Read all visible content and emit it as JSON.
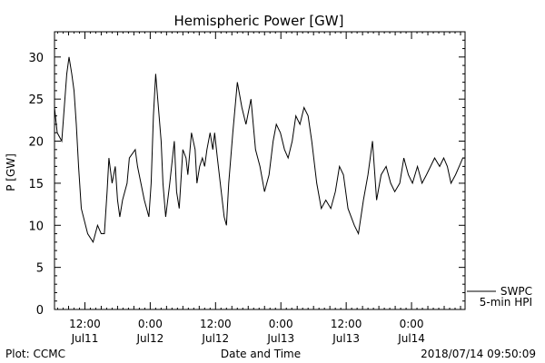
{
  "chart_data": {
    "type": "line",
    "title": "Hemispheric Power [GW]",
    "ylabel": "P [GW]",
    "xlabel": "Date and Time",
    "ylim": [
      0,
      33
    ],
    "xlim": [
      "2018-07-11T06:25",
      "2018-07-14T09:50"
    ],
    "grid": false,
    "y_ticks": [
      "0",
      "5",
      "10",
      "15",
      "20",
      "25",
      "30"
    ],
    "x_ticks": [
      {
        "time": "2018-07-11T12:00",
        "line1": "12:00",
        "line2": "Jul11"
      },
      {
        "time": "2018-07-12T00:00",
        "line1": "0:00",
        "line2": "Jul12"
      },
      {
        "time": "2018-07-12T12:00",
        "line1": "12:00",
        "line2": "Jul12"
      },
      {
        "time": "2018-07-13T00:00",
        "line1": "0:00",
        "line2": "Jul13"
      },
      {
        "time": "2018-07-13T12:00",
        "line1": "12:00",
        "line2": "Jul13"
      },
      {
        "time": "2018-07-14T00:00",
        "line1": "0:00",
        "line2": "Jul14"
      }
    ],
    "legend": {
      "placement": "bottom-right",
      "line1": "SWPC",
      "line2": "5-min HPI"
    },
    "series": [
      {
        "name": "SWPC 5-min HPI",
        "color": "#000000",
        "x": [
          "2018-07-11T06:25",
          "2018-07-11T06:55",
          "2018-07-11T07:45",
          "2018-07-11T08:40",
          "2018-07-11T09:05",
          "2018-07-11T09:35",
          "2018-07-11T10:00",
          "2018-07-11T10:25",
          "2018-07-11T10:50",
          "2018-07-11T11:20",
          "2018-07-11T12:30",
          "2018-07-11T13:30",
          "2018-07-11T14:20",
          "2018-07-11T15:00",
          "2018-07-11T15:35",
          "2018-07-11T16:05",
          "2018-07-11T16:25",
          "2018-07-11T17:00",
          "2018-07-11T17:35",
          "2018-07-11T18:00",
          "2018-07-11T18:25",
          "2018-07-11T18:55",
          "2018-07-11T19:45",
          "2018-07-11T20:10",
          "2018-07-11T21:15",
          "2018-07-11T21:40",
          "2018-07-11T22:55",
          "2018-07-11T23:45",
          "2018-07-12T00:10",
          "2018-07-12T00:35",
          "2018-07-12T01:00",
          "2018-07-12T01:30",
          "2018-07-12T02:00",
          "2018-07-12T02:20",
          "2018-07-12T02:50",
          "2018-07-12T03:35",
          "2018-07-12T04:25",
          "2018-07-12T04:50",
          "2018-07-12T05:20",
          "2018-07-12T06:00",
          "2018-07-12T06:35",
          "2018-07-12T06:55",
          "2018-07-12T07:35",
          "2018-07-12T08:15",
          "2018-07-12T08:35",
          "2018-07-12T09:05",
          "2018-07-12T09:35",
          "2018-07-12T10:00",
          "2018-07-12T10:25",
          "2018-07-12T11:00",
          "2018-07-12T11:30",
          "2018-07-12T11:50",
          "2018-07-12T12:20",
          "2018-07-12T13:35",
          "2018-07-12T14:00",
          "2018-07-12T14:25",
          "2018-07-12T15:10",
          "2018-07-12T16:00",
          "2018-07-12T16:50",
          "2018-07-12T17:35",
          "2018-07-12T18:30",
          "2018-07-12T19:20",
          "2018-07-12T20:10",
          "2018-07-12T21:00",
          "2018-07-12T21:50",
          "2018-07-12T22:35",
          "2018-07-12T23:10",
          "2018-07-12T23:55",
          "2018-07-13T00:40",
          "2018-07-13T01:20",
          "2018-07-13T02:05",
          "2018-07-13T02:45",
          "2018-07-13T03:30",
          "2018-07-13T04:15",
          "2018-07-13T05:00",
          "2018-07-13T05:40",
          "2018-07-13T06:35",
          "2018-07-13T07:25",
          "2018-07-13T08:15",
          "2018-07-13T09:10",
          "2018-07-13T10:00",
          "2018-07-13T10:45",
          "2018-07-13T11:30",
          "2018-07-13T12:20",
          "2018-07-13T13:30",
          "2018-07-13T14:15",
          "2018-07-13T15:10",
          "2018-07-13T16:00",
          "2018-07-13T16:50",
          "2018-07-13T17:35",
          "2018-07-13T18:25",
          "2018-07-13T19:20",
          "2018-07-13T20:10",
          "2018-07-13T20:55",
          "2018-07-13T21:50",
          "2018-07-13T22:35",
          "2018-07-13T23:25",
          "2018-07-14T00:10",
          "2018-07-14T01:05",
          "2018-07-14T01:55",
          "2018-07-14T02:45",
          "2018-07-14T03:30",
          "2018-07-14T04:15",
          "2018-07-14T05:10",
          "2018-07-14T05:55",
          "2018-07-14T06:35",
          "2018-07-14T07:15",
          "2018-07-14T08:05",
          "2018-07-14T08:45",
          "2018-07-14T09:25",
          "2018-07-14T09:50"
        ],
        "values": [
          24,
          21,
          20,
          28,
          30,
          28,
          26,
          22,
          17,
          12,
          9,
          8,
          10,
          9,
          9,
          14,
          18,
          15,
          17,
          13,
          11,
          13,
          15,
          18,
          19,
          17,
          13,
          11,
          15,
          23,
          28,
          24,
          20,
          15,
          11,
          15,
          20,
          14,
          12,
          19,
          18,
          16,
          21,
          19,
          15,
          17,
          18,
          17,
          19,
          21,
          19,
          21,
          18,
          11,
          10,
          15,
          21,
          27,
          24,
          22,
          25,
          19,
          17,
          14,
          16,
          20,
          22,
          21,
          19,
          18,
          20,
          23,
          22,
          24,
          23,
          20,
          15,
          12,
          13,
          12,
          14,
          17,
          16,
          12,
          10,
          9,
          13,
          16,
          20,
          13,
          16,
          17,
          15,
          14,
          15,
          18,
          16,
          15,
          17,
          15,
          16,
          17,
          18,
          17,
          18,
          17,
          15,
          16,
          17,
          18,
          18
        ]
      }
    ]
  },
  "footer": {
    "left": "Plot: CCMC",
    "center": "Date and Time",
    "right": "2018/07/14 09:50:09"
  }
}
